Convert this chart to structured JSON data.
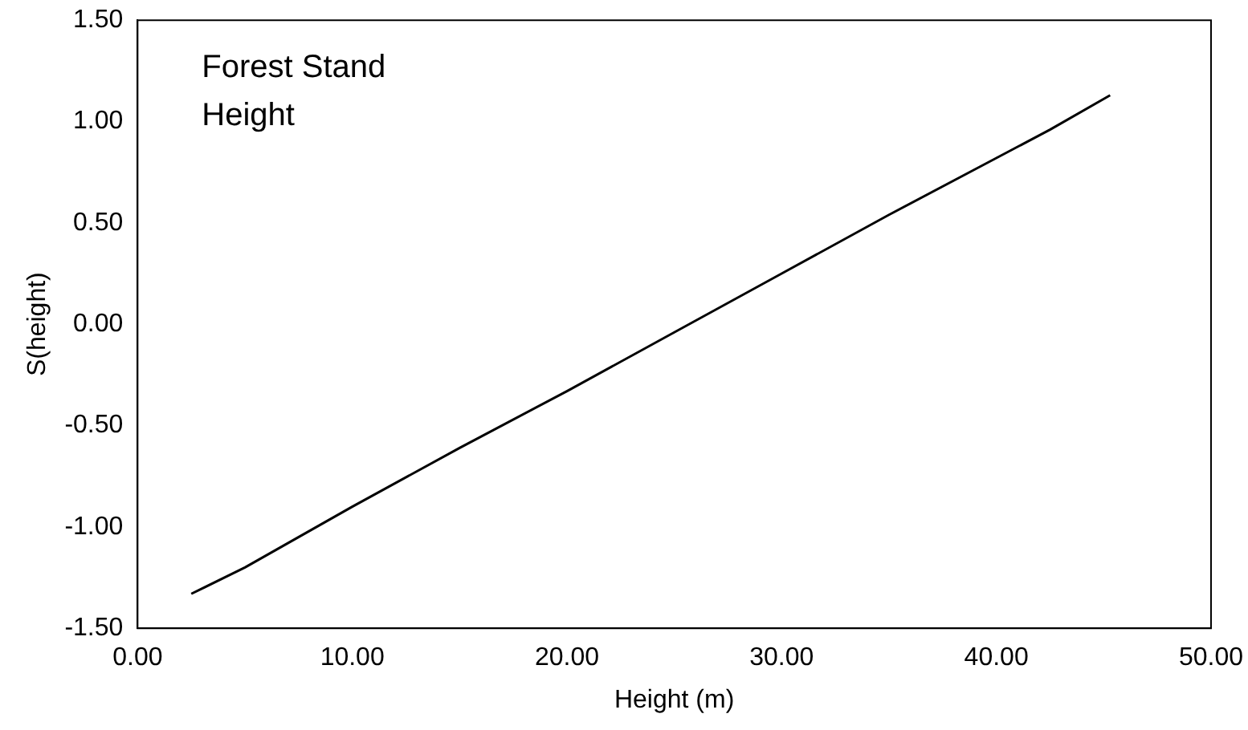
{
  "chart_data": {
    "type": "line",
    "xlabel": "Height (m)",
    "ylabel": "S(height)",
    "annotations": [
      "Forest Stand Height"
    ],
    "series": [
      {
        "color": "#000000",
        "x": [
          2.5,
          5,
          10,
          15,
          20,
          25,
          30,
          35,
          40,
          42.5,
          45.3
        ],
        "values": [
          -1.33,
          -1.2,
          -0.9,
          -0.61,
          -0.33,
          -0.04,
          0.25,
          0.54,
          0.82,
          0.96,
          1.13
        ]
      }
    ],
    "xlim": [
      0,
      50
    ],
    "xticks": [
      {
        "value": 0,
        "label": "0.00"
      },
      {
        "value": 10,
        "label": "10.00"
      },
      {
        "value": 20,
        "label": "20.00"
      },
      {
        "value": 30,
        "label": "30.00"
      },
      {
        "value": 40,
        "label": "40.00"
      },
      {
        "value": 50,
        "label": "50.00"
      }
    ],
    "ylim": [
      -1.5,
      1.5
    ],
    "yticks": [
      {
        "value": -1.5,
        "label": "-1.50"
      },
      {
        "value": -1,
        "label": "-1.00"
      },
      {
        "value": -0.5,
        "label": "-0.50"
      },
      {
        "value": 0,
        "label": "0.00"
      },
      {
        "value": 0.5,
        "label": "0.50"
      },
      {
        "value": 1,
        "label": "1.00"
      },
      {
        "value": 1.5,
        "label": "1.50"
      }
    ],
    "grid": false,
    "legend": false,
    "marker": "none",
    "line_style": "solid"
  }
}
